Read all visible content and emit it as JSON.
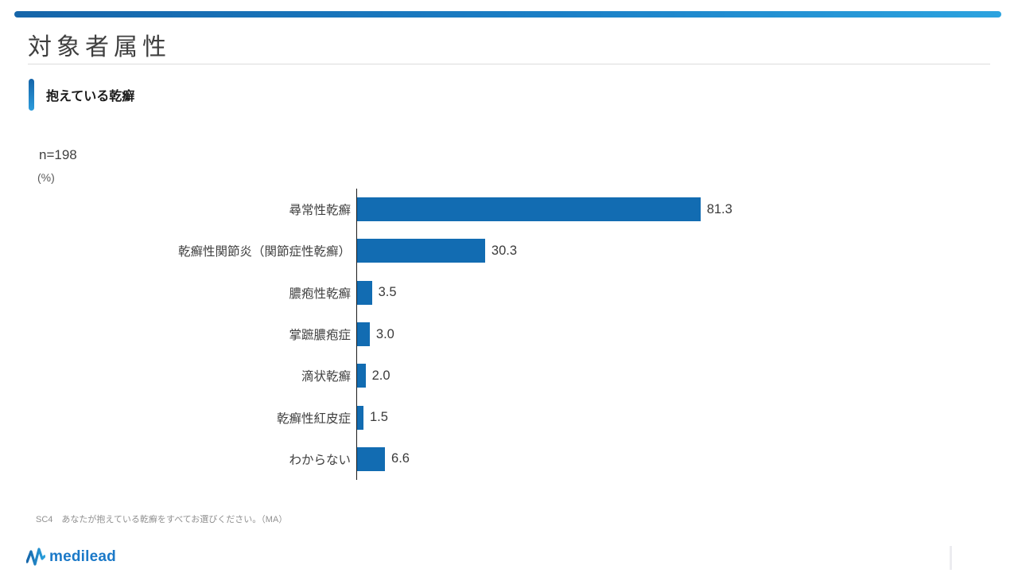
{
  "page": {
    "title": "対象者属性",
    "section_title": "抱えている乾癬",
    "sample_label": "n=198",
    "unit_label": "(%)",
    "footnote": "SC4　あなたが抱えている乾癬をすべてお選びください。（MA）",
    "logo_text": "medilead"
  },
  "colors": {
    "bar": "#126CB2",
    "top_bar_start": "#1565A9",
    "top_bar_end": "#2CA3DF",
    "accent_bar": "#1B7BC4",
    "logo_blue": "#1B79C8",
    "axis": "#1a1a1a",
    "title_text": "#3F3F3F"
  },
  "chart_data": {
    "type": "bar",
    "orientation": "horizontal",
    "title": "抱えている乾癬",
    "n": 198,
    "unit": "%",
    "xlim": [
      0,
      100
    ],
    "grid": false,
    "legend": false,
    "categories": [
      "尋常性乾癬",
      "乾癬性関節炎（関節症性乾癬）",
      "膿疱性乾癬",
      "掌蹠膿疱症",
      "滴状乾癬",
      "乾癬性紅皮症",
      "わからない"
    ],
    "values": [
      81.3,
      30.3,
      3.5,
      3.0,
      2.0,
      1.5,
      6.6
    ],
    "value_labels": [
      "81.3",
      "30.3",
      "3.5",
      "3.0",
      "2.0",
      "1.5",
      "6.6"
    ]
  }
}
